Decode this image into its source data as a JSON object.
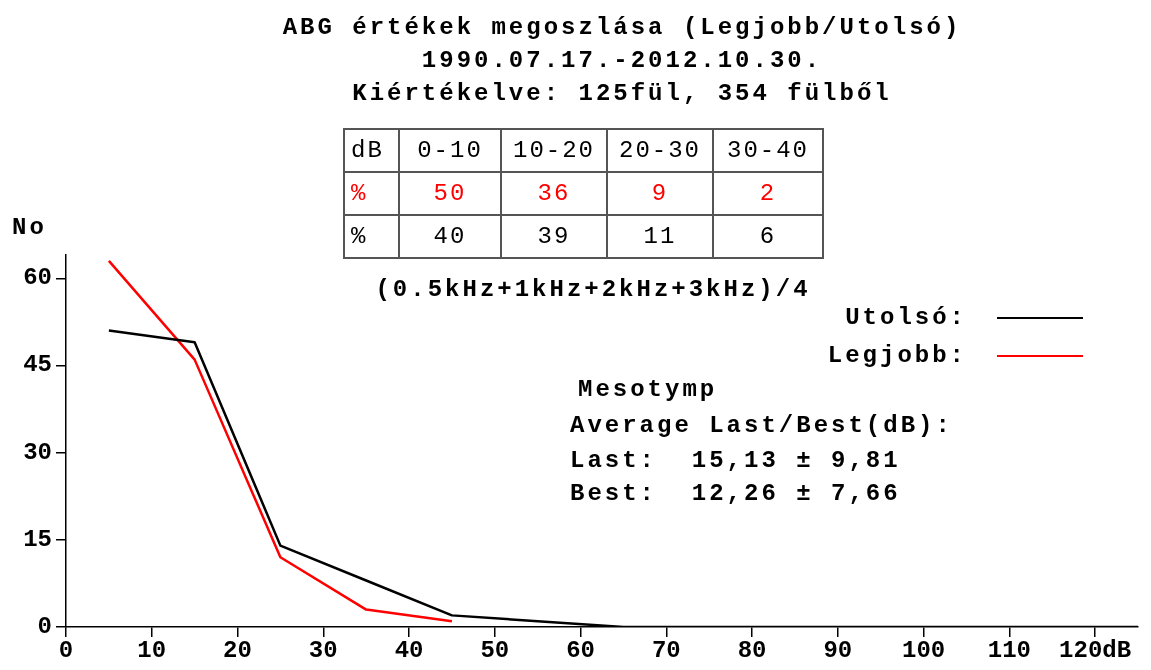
{
  "chart_data": {
    "type": "line",
    "title": "ABG értékek megoszlása (Legjobb/Utolsó)",
    "subtitle": "1990.07.17.-2012.10.30.",
    "ylabel": "No",
    "xlim": [
      0,
      125
    ],
    "xticks": [
      0,
      10,
      20,
      30,
      40,
      50,
      60,
      70,
      80,
      90,
      100,
      110,
      {
        "value": 120,
        "label": "120dB"
      }
    ],
    "ylim": [
      0,
      64
    ],
    "yticks": [
      0,
      15,
      30,
      45,
      60
    ],
    "legend": "top right",
    "grid": false,
    "marker": "none",
    "line_style": "solid",
    "series": [
      {
        "name": "Utolsó:",
        "color": "#000000",
        "x": [
          5,
          15,
          25,
          35,
          45,
          55,
          65,
          75,
          85,
          95,
          105,
          115,
          125
        ],
        "values": [
          51,
          49,
          14,
          8,
          2,
          1,
          0,
          0,
          0,
          0,
          0,
          0,
          0
        ]
      },
      {
        "name": "Legjobb:",
        "color": "#ff0000",
        "x": [
          5,
          15,
          25,
          35,
          45
        ],
        "values": [
          63,
          46,
          12,
          3,
          1
        ]
      }
    ],
    "annotations": [
      "Kiértékelve: 125fül, 354 fülből",
      "dB",
      "0-10",
      "10-20",
      "20-30",
      "30-40",
      "%",
      "50",
      "36",
      "9",
      "2",
      "%",
      "40",
      "39",
      "11",
      "6",
      "(0.5kHz+1kHz+2kHz+3kHz)/4",
      "Mesotymp",
      "Average Last/Best(dB):",
      "Last:  15,13 ± 9,81",
      "Best:  12,26 ± 7,66"
    ]
  }
}
